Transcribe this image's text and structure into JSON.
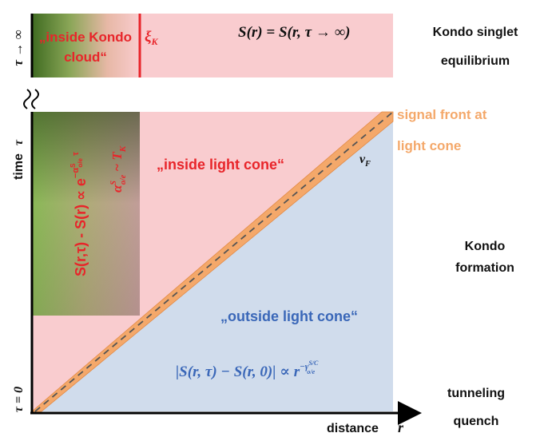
{
  "top_panel": {
    "cloud_label_line1": "„inside Kondo",
    "cloud_label_line2": "cloud“",
    "xi_symbol": "ξ",
    "xi_subscript": "K",
    "equation": "S(r) = S(r, τ → ∞)",
    "axis_label_tau_infinity": "τ → ∞"
  },
  "main_panel": {
    "inside_light_cone": "„inside light cone“",
    "outside_light_cone": "„outside light cone“",
    "vf_symbol": "v",
    "vf_subscript": "F",
    "signal_front_line1": "signal front at",
    "signal_front_line2": "light cone",
    "inside_cloud_relation": "S(r,τ) - S(r) ∝ e",
    "inside_cloud_exponent": "−α",
    "inside_cloud_exponent_sup": "S",
    "inside_cloud_exponent_sub": "o/e",
    "inside_cloud_exponent_tail": " τ",
    "alpha_relation": "α",
    "alpha_relation_sup": "S",
    "alpha_relation_sub": "o/e",
    "alpha_relation_tail": " ~ T",
    "alpha_relation_tail_sub": "K",
    "outside_relation": "|S(r, τ) − S(r, 0)| ∝ r",
    "outside_exponent": "−γ",
    "outside_exponent_sup": "S/C",
    "outside_exponent_sub": "o/e"
  },
  "axes": {
    "y_label": "time",
    "y_tau": "τ",
    "y_origin": "τ = 0",
    "x_label": "distance",
    "x_var": "r"
  },
  "stages": {
    "top_line1": "Kondo singlet",
    "top_line2": "equilibrium",
    "middle_line1": "Kondo",
    "middle_line2": "formation",
    "bottom_line1": "tunneling",
    "bottom_line2": "quench"
  },
  "colors": {
    "pink": "#f9cccf",
    "blue": "#d0dcec",
    "red_text": "#e8252a",
    "blue_text": "#3a67b8",
    "orange": "#f4a86a",
    "green": "#7ab34a",
    "dark_green": "#4a6a22"
  }
}
